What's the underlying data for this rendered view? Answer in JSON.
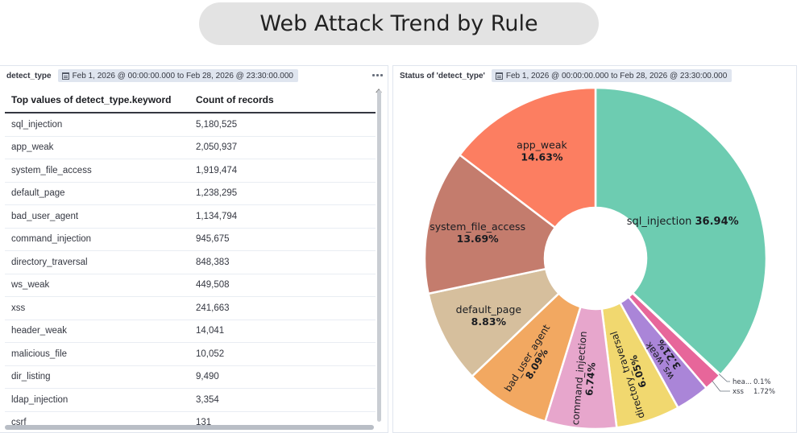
{
  "page_title": "Web Attack Trend by Rule",
  "left_panel": {
    "title": "detect_type",
    "time_range": "Feb 1, 2026 @ 00:00:00.000 to Feb 28, 2026 @ 23:30:00.000",
    "columns": [
      "Top values of detect_type.keyword",
      "Count of records"
    ],
    "rows": [
      [
        "sql_injection",
        "5,180,525"
      ],
      [
        "app_weak",
        "2,050,937"
      ],
      [
        "system_file_access",
        "1,919,474"
      ],
      [
        "default_page",
        "1,238,295"
      ],
      [
        "bad_user_agent",
        "1,134,794"
      ],
      [
        "command_injection",
        "945,675"
      ],
      [
        "directory_traversal",
        "848,383"
      ],
      [
        "ws_weak",
        "449,508"
      ],
      [
        "xss",
        "241,663"
      ],
      [
        "header_weak",
        "14,041"
      ],
      [
        "malicious_file",
        "10,052"
      ],
      [
        "dir_listing",
        "9,490"
      ],
      [
        "ldap_injection",
        "3,354"
      ],
      [
        "csrf",
        "131"
      ]
    ]
  },
  "right_panel": {
    "title": "Status of 'detect_type'",
    "time_range": "Feb 1, 2026 @ 00:00:00.000 to Feb 28, 2026 @ 23:30:00.000"
  },
  "chart_data": {
    "type": "pie",
    "donut": true,
    "title": "",
    "slices": [
      {
        "label": "sql_injection",
        "percent_label": "36.94%",
        "value": 36.94,
        "color": "#6dccb1",
        "label_mode": "inline"
      },
      {
        "label": "hea...",
        "percent_label": "0.1%",
        "value": 0.1,
        "color": "#d36086",
        "label_mode": "outside"
      },
      {
        "label": "xss",
        "percent_label": "1.72%",
        "value": 1.72,
        "color": "#e7669a",
        "label_mode": "outside"
      },
      {
        "label": "ws_weak",
        "percent_label": "3.21%",
        "value": 3.21,
        "color": "#aa85d8",
        "label_mode": "radial"
      },
      {
        "label": "directory_traversal",
        "percent_label": "6.05%",
        "value": 6.05,
        "color": "#f1d86f",
        "label_mode": "radial"
      },
      {
        "label": "command_injection",
        "percent_label": "6.74%",
        "value": 6.74,
        "color": "#e7a6cc",
        "label_mode": "radial"
      },
      {
        "label": "bad_user_agent",
        "percent_label": "8.09%",
        "value": 8.09,
        "color": "#f2a861",
        "label_mode": "radial"
      },
      {
        "label": "default_page",
        "percent_label": "8.83%",
        "value": 8.83,
        "color": "#d6bf9d",
        "label_mode": "inline"
      },
      {
        "label": "system_file_access",
        "percent_label": "13.69%",
        "value": 13.69,
        "color": "#c47c6d",
        "label_mode": "inline"
      },
      {
        "label": "app_weak",
        "percent_label": "14.63%",
        "value": 14.63,
        "color": "#fc7e61",
        "label_mode": "inline"
      }
    ]
  }
}
